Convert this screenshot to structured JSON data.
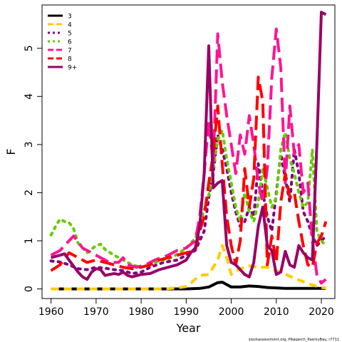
{
  "chart_data": {
    "type": "line",
    "title": "",
    "xlabel": "Year",
    "ylabel": "F",
    "xlim": [
      1958,
      2023
    ],
    "ylim": [
      -0.2,
      5.9
    ],
    "x_ticks": [
      1960,
      1970,
      1980,
      1990,
      2000,
      2010,
      2020
    ],
    "y_ticks": [
      0,
      1,
      2,
      3,
      4,
      5
    ],
    "grid": false,
    "legend_position": "top-left",
    "footnote": "stockassessment.org, Pikeperch_PaernuBay, r7711",
    "series": [
      {
        "name": "3",
        "color": "#000000",
        "dash": "solid",
        "x": [
          1960,
          1965,
          1970,
          1975,
          1980,
          1985,
          1990,
          1993,
          1995,
          1997,
          1998,
          2000,
          2002,
          2004,
          2006,
          2008,
          2010,
          2012,
          2015,
          2018,
          2021
        ],
        "y": [
          0,
          0,
          0,
          0,
          0,
          0,
          0,
          0.01,
          0.04,
          0.13,
          0.14,
          0.04,
          0.04,
          0.06,
          0.05,
          0.03,
          0.02,
          0.01,
          0.01,
          0.01,
          0.01
        ]
      },
      {
        "name": "4",
        "color": "#FFCC00",
        "dash": "dash",
        "x": [
          1960,
          1970,
          1980,
          1985,
          1988,
          1990,
          1991,
          1993,
          1995,
          1997,
          1998,
          1999,
          2000,
          2002,
          2004,
          2006,
          2008,
          2009,
          2011,
          2014,
          2016,
          2018,
          2020,
          2021
        ],
        "y": [
          0,
          0,
          0,
          0,
          0.02,
          0.05,
          0.12,
          0.28,
          0.3,
          0.6,
          0.9,
          0.65,
          0.3,
          0.42,
          0.48,
          0.45,
          0.45,
          0.4,
          0.35,
          0.22,
          0.15,
          0.08,
          0.03,
          0.02
        ]
      },
      {
        "name": "5",
        "color": "#800080",
        "dash": "dot",
        "x": [
          1960,
          1962,
          1964,
          1966,
          1968,
          1970,
          1972,
          1974,
          1976,
          1978,
          1980,
          1982,
          1985,
          1988,
          1990,
          1992,
          1994,
          1995,
          1996,
          1997,
          1998,
          1999,
          2000,
          2001,
          2002,
          2003,
          2004,
          2005,
          2006,
          2007,
          2008,
          2009,
          2010,
          2011,
          2012,
          2013,
          2014,
          2015,
          2016,
          2017,
          2018,
          2019,
          2020,
          2021
        ],
        "y": [
          0.58,
          0.56,
          0.5,
          0.42,
          0.4,
          0.45,
          0.43,
          0.4,
          0.38,
          0.32,
          0.35,
          0.45,
          0.55,
          0.6,
          0.7,
          0.8,
          1.2,
          1.9,
          2.4,
          3.2,
          2.9,
          2.5,
          2.0,
          1.6,
          1.3,
          1.4,
          1.7,
          1.5,
          2.6,
          2.0,
          1.5,
          1.2,
          2.0,
          2.8,
          2.3,
          1.8,
          2.9,
          2.4,
          1.6,
          1.4,
          1.1,
          0.9,
          1.0,
          1.1
        ]
      },
      {
        "name": "6",
        "color": "#66CC00",
        "dash": "dot",
        "x": [
          1960,
          1961,
          1962,
          1963,
          1964,
          1965,
          1966,
          1968,
          1970,
          1971,
          1972,
          1974,
          1976,
          1978,
          1980,
          1982,
          1984,
          1986,
          1988,
          1990,
          1992,
          1993,
          1994,
          1995,
          1996,
          1997,
          1998,
          1999,
          2000,
          2001,
          2002,
          2003,
          2004,
          2005,
          2006,
          2007,
          2008,
          2009,
          2010,
          2011,
          2012,
          2013,
          2014,
          2015,
          2016,
          2017,
          2018,
          2019,
          2020,
          2021
        ],
        "y": [
          1.12,
          1.3,
          1.45,
          1.4,
          1.38,
          1.25,
          0.95,
          0.75,
          0.9,
          0.93,
          0.82,
          0.7,
          0.6,
          0.5,
          0.45,
          0.5,
          0.58,
          0.62,
          0.72,
          0.85,
          1.05,
          1.3,
          1.65,
          1.95,
          2.5,
          3.1,
          3.3,
          2.7,
          2.2,
          1.7,
          1.4,
          2.0,
          1.6,
          1.4,
          1.8,
          2.5,
          2.1,
          1.7,
          1.9,
          2.9,
          3.25,
          2.7,
          2.4,
          2.0,
          1.7,
          1.8,
          2.9,
          1.2,
          1.0,
          0.9
        ]
      },
      {
        "name": "7",
        "color": "#FF1493",
        "dash": "longdash",
        "x": [
          1960,
          1962,
          1964,
          1965,
          1967,
          1969,
          1971,
          1973,
          1975,
          1976,
          1977,
          1979,
          1981,
          1983,
          1986,
          1988,
          1990,
          1992,
          1993,
          1994,
          1995,
          1996,
          1997,
          1998,
          1999,
          2000,
          2001,
          2002,
          2003,
          2004,
          2005,
          2006,
          2007,
          2008,
          2009,
          2010,
          2011,
          2012,
          2013,
          2014,
          2015,
          2016,
          2017,
          2018,
          2019,
          2020,
          2021
        ],
        "y": [
          0.7,
          0.8,
          1.0,
          1.1,
          0.85,
          0.75,
          0.65,
          0.55,
          0.55,
          0.65,
          0.5,
          0.45,
          0.5,
          0.6,
          0.7,
          0.8,
          0.85,
          1.0,
          1.5,
          2.4,
          3.5,
          2.6,
          5.3,
          4.3,
          3.6,
          3.0,
          2.4,
          3.2,
          2.8,
          3.6,
          3.0,
          2.2,
          1.8,
          2.5,
          4.4,
          5.4,
          4.6,
          2.2,
          3.8,
          2.8,
          3.0,
          2.0,
          2.2,
          1.0,
          0.3,
          0.12,
          0.2
        ]
      },
      {
        "name": "8",
        "color": "#FF0000",
        "dash": "longdash",
        "x": [
          1960,
          1962,
          1964,
          1966,
          1968,
          1970,
          1972,
          1974,
          1976,
          1978,
          1980,
          1982,
          1984,
          1986,
          1988,
          1990,
          1992,
          1993,
          1994,
          1995,
          1996,
          1997,
          1998,
          1999,
          2000,
          2001,
          2002,
          2003,
          2004,
          2005,
          2006,
          2007,
          2008,
          2009,
          2010,
          2011,
          2012,
          2013,
          2014,
          2015,
          2016,
          2017,
          2018,
          2019,
          2020,
          2021
        ],
        "y": [
          0.38,
          0.5,
          0.75,
          0.65,
          0.55,
          0.6,
          0.55,
          0.5,
          0.45,
          0.42,
          0.45,
          0.5,
          0.6,
          0.65,
          0.7,
          0.75,
          0.8,
          1.2,
          1.5,
          2.2,
          2.8,
          3.8,
          2.6,
          1.5,
          0.9,
          0.5,
          1.0,
          2.5,
          1.7,
          2.3,
          4.4,
          3.9,
          0.5,
          1.1,
          0.55,
          1.8,
          2.4,
          1.9,
          2.0,
          1.4,
          0.9,
          0.5,
          0.45,
          0.95,
          1.1,
          1.4
        ]
      },
      {
        "name": "9+",
        "color": "#990066",
        "dash": "solid",
        "x": [
          1960,
          1962,
          1963,
          1964,
          1966,
          1967,
          1968,
          1969,
          1970,
          1971,
          1972,
          1973,
          1974,
          1975,
          1976,
          1977,
          1978,
          1980,
          1982,
          1984,
          1986,
          1988,
          1990,
          1991,
          1992,
          1993,
          1994,
          1995,
          1996,
          1997,
          1998,
          1999,
          2000,
          2001,
          2002,
          2003,
          2004,
          2005,
          2006,
          2007,
          2008,
          2009,
          2010,
          2011,
          2012,
          2013,
          2014,
          2015,
          2016,
          2017,
          2018,
          2019,
          2020,
          2021
        ],
        "y": [
          0.65,
          0.7,
          0.73,
          0.6,
          0.35,
          0.25,
          0.2,
          0.35,
          0.42,
          0.4,
          0.28,
          0.3,
          0.32,
          0.3,
          0.35,
          0.28,
          0.25,
          0.3,
          0.32,
          0.4,
          0.45,
          0.5,
          0.6,
          0.75,
          0.85,
          1.3,
          2.4,
          5.05,
          2.1,
          2.2,
          2.25,
          0.9,
          0.55,
          0.5,
          0.4,
          0.3,
          0.25,
          0.55,
          1.3,
          1.7,
          0.9,
          0.8,
          0.3,
          0.35,
          0.78,
          0.5,
          0.45,
          0.9,
          0.75,
          0.65,
          0.6,
          3.0,
          5.75,
          5.7
        ]
      }
    ]
  }
}
